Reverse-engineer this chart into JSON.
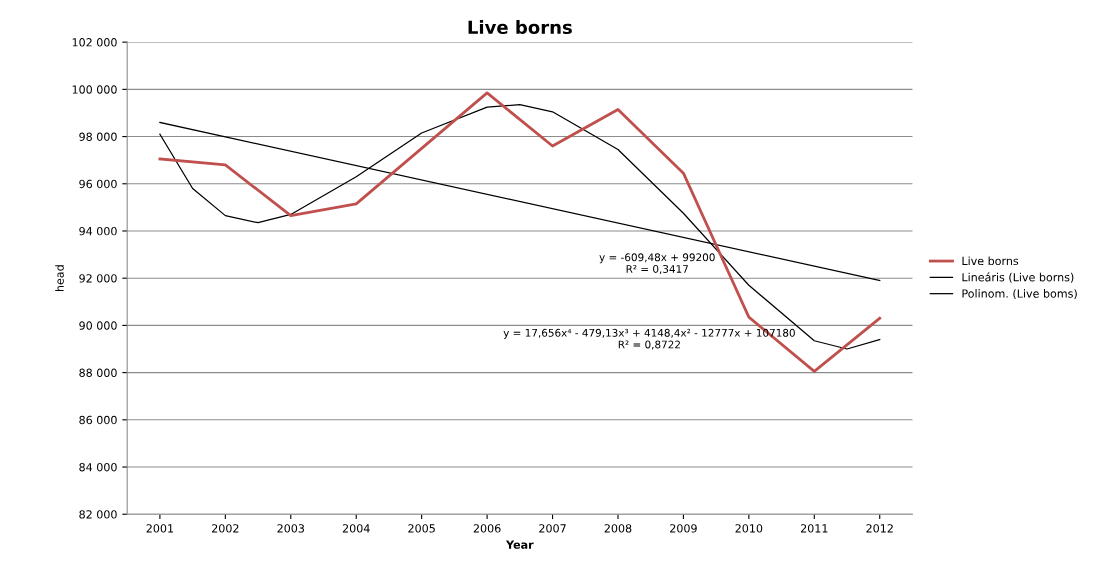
{
  "chart_data": {
    "type": "line",
    "title": "Live borns",
    "xlabel": "Year",
    "ylabel": "head",
    "x": [
      2001,
      2002,
      2003,
      2004,
      2005,
      2006,
      2007,
      2008,
      2009,
      2010,
      2011,
      2012
    ],
    "series": [
      {
        "name": "Live borns",
        "color": "#c0504d",
        "values": [
          97050,
          96800,
          94650,
          95150,
          97500,
          99850,
          97600,
          99150,
          96450,
          90350,
          88050,
          90300
        ]
      },
      {
        "name": "Lineáris (Live borns)",
        "color": "#000000",
        "x": [
          2001,
          2012
        ],
        "values": [
          98600,
          91900
        ]
      },
      {
        "name": "Polinom. (Live boms)",
        "color": "#000000",
        "x": [
          2001,
          2001.5,
          2002,
          2002.5,
          2003,
          2004,
          2005,
          2006,
          2006.5,
          2007,
          2008,
          2009,
          2010,
          2011,
          2011.5,
          2012
        ],
        "values": [
          98100,
          95800,
          94650,
          94350,
          94700,
          96300,
          98150,
          99250,
          99350,
          99050,
          97450,
          94750,
          91700,
          89350,
          89000,
          89400
        ]
      }
    ],
    "xlim": [
      2000.5,
      2012.5
    ],
    "xticks": [
      2001,
      2002,
      2003,
      2004,
      2005,
      2006,
      2007,
      2008,
      2009,
      2010,
      2011,
      2012
    ],
    "ylim": [
      82000,
      102000
    ],
    "yticks": [
      {
        "value": 82000,
        "label": "82 000"
      },
      {
        "value": 84000,
        "label": "84 000"
      },
      {
        "value": 86000,
        "label": "86 000"
      },
      {
        "value": 88000,
        "label": "88 000"
      },
      {
        "value": 90000,
        "label": "90 000"
      },
      {
        "value": 92000,
        "label": "92 000"
      },
      {
        "value": 94000,
        "label": "94 000"
      },
      {
        "value": 96000,
        "label": "96 000"
      },
      {
        "value": 98000,
        "label": "98 000"
      },
      {
        "value": 100000,
        "label": "100 000"
      },
      {
        "value": 102000,
        "label": "102 000"
      }
    ],
    "annotations": [
      "y = -609,48x + 99200\nR² = 0,3417",
      "y = 17,656x⁴ - 479,13x³ + 4148,4x² - 12777x + 107180\nR² = 0,8722"
    ],
    "grid": "y",
    "legend": "right",
    "marker": "none",
    "line_style": "solid"
  }
}
